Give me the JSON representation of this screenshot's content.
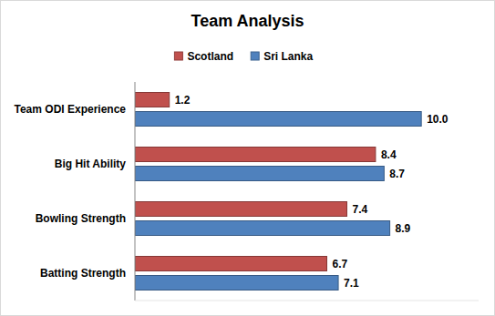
{
  "chart_data": {
    "type": "bar",
    "title": "Team Analysis",
    "orientation": "horizontal",
    "categories": [
      "Team ODI Experience",
      "Big Hit Ability",
      "Bowling Strength",
      "Batting Strength"
    ],
    "series": [
      {
        "name": "Scotland",
        "color": "#c0504d",
        "values": [
          1.2,
          8.4,
          7.4,
          6.7
        ],
        "value_labels": [
          "1.2",
          "8.4",
          "7.4",
          "6.7"
        ]
      },
      {
        "name": "Sri Lanka",
        "color": "#4f81bd",
        "values": [
          10,
          8.7,
          8.9,
          7.1
        ],
        "value_labels": [
          "10.0",
          "8.7",
          "8.9",
          "7.1"
        ]
      }
    ],
    "xlim": [
      0,
      12
    ],
    "tick_labels": false,
    "data_labels": true,
    "legend": "top",
    "grid": false
  }
}
